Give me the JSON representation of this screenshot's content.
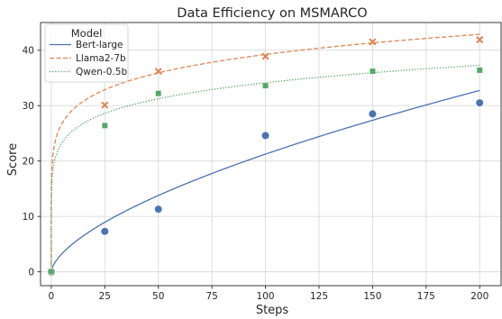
{
  "chart_data": {
    "type": "scatter",
    "title": "Data Efficiency on MSMARCO",
    "xlabel": "Steps",
    "ylabel": "Score",
    "xlim": [
      -5,
      210
    ],
    "ylim": [
      -2.5,
      45
    ],
    "xticks": [
      0,
      25,
      50,
      75,
      100,
      125,
      150,
      175,
      200
    ],
    "yticks": [
      0,
      10,
      20,
      30,
      40
    ],
    "grid": true,
    "legend": {
      "title": "Model",
      "placement": "top-left"
    },
    "series": [
      {
        "name": "Bert-large",
        "color": "#4c72b0",
        "marker": "circle",
        "line_style": "solid",
        "x": [
          0,
          25,
          50,
          100,
          150,
          200
        ],
        "y": [
          0,
          7.3,
          11.3,
          24.6,
          28.5,
          30.5
        ],
        "fit": {
          "form": "a*x^b",
          "a": 1.2,
          "b": 0.624
        }
      },
      {
        "name": "Llama2-7b",
        "color": "#dd8452",
        "marker": "x",
        "line_style": "dashed",
        "x": [
          0,
          25,
          50,
          100,
          150,
          200
        ],
        "y": [
          0,
          30.1,
          36.2,
          38.9,
          41.5,
          41.9
        ],
        "fit": {
          "form": "a*x^b",
          "a": 21.8,
          "b": 0.1276
        }
      },
      {
        "name": "Qwen-0.5b",
        "color": "#55a868",
        "marker": "square",
        "line_style": "dotted",
        "x": [
          0,
          25,
          50,
          100,
          150,
          200
        ],
        "y": [
          0,
          26.4,
          32.2,
          33.6,
          36.2,
          36.4
        ],
        "fit": {
          "form": "a*x^b",
          "a": 18.98,
          "b": 0.1274
        }
      }
    ]
  }
}
